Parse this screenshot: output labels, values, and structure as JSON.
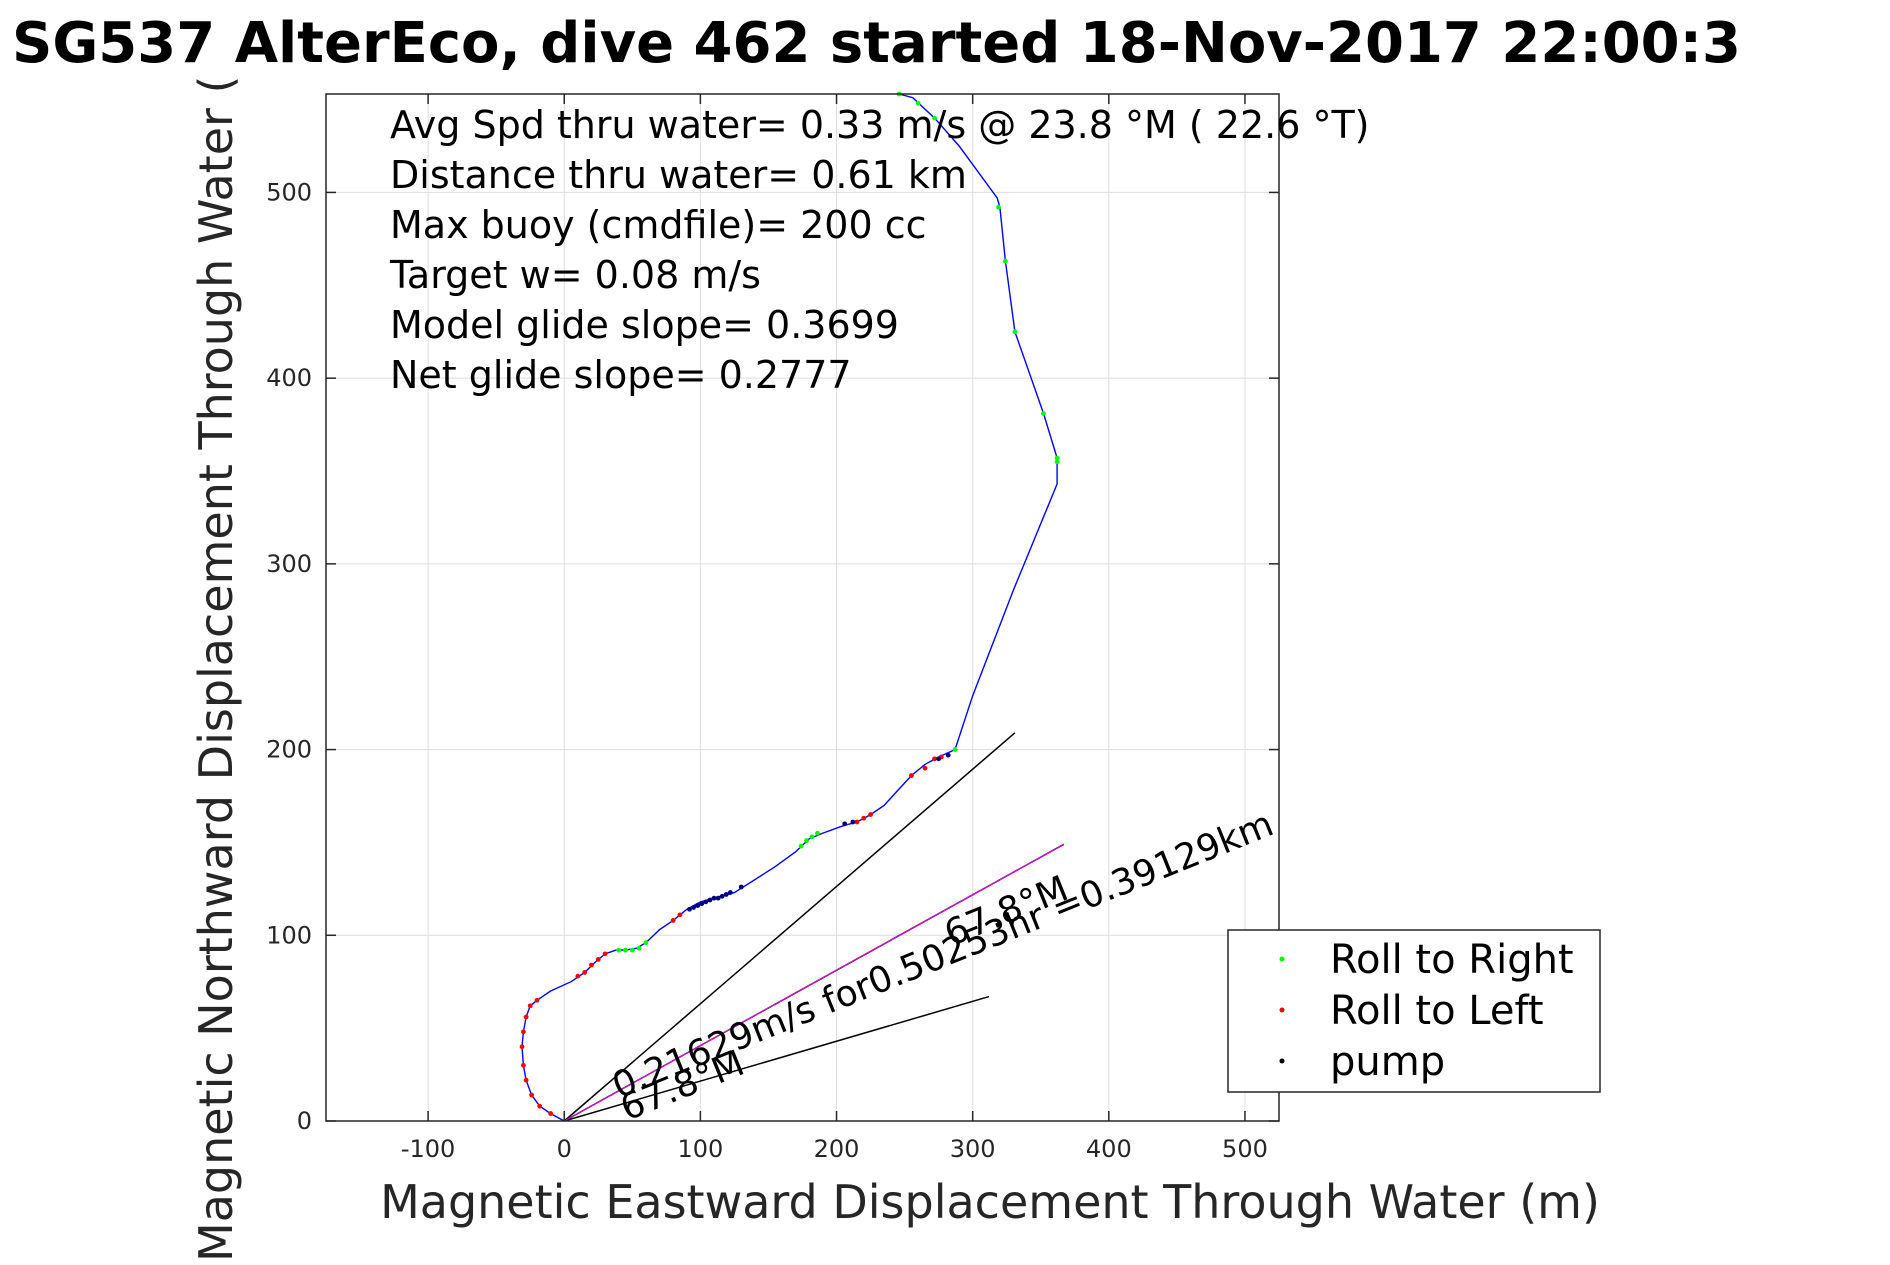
{
  "chart_data": {
    "type": "line",
    "title": "SG537 AlterEco, dive 462 started 18-Nov-2017 22:00:3",
    "xlabel": "Magnetic Eastward Displacement Through Water (m)",
    "ylabel": "Magnetic Northward Displacement Through Water (",
    "xlim": [
      -175,
      525
    ],
    "ylim": [
      0,
      553
    ],
    "xticks": [
      -100,
      0,
      100,
      200,
      300,
      400,
      500
    ],
    "yticks": [
      0,
      100,
      200,
      300,
      400,
      500
    ],
    "grid": true,
    "legend_position": "bottom-right",
    "colors": {
      "track": "#0000ff",
      "roll_right": "#00ff00",
      "roll_left": "#ff0000",
      "pump": "#000080",
      "current_line": "#ff00ff",
      "axes": "#262626",
      "grid": "#dedede"
    },
    "stats": [
      "Avg Spd thru water=  0.33 m/s @  23.8 °M ( 22.6 °T)",
      "Distance thru water=  0.61 km",
      "Max buoy (cmdfile)= 200 cc",
      "Target w= 0.08 m/s",
      "Model glide slope= 0.3699",
      "Net glide slope= 0.2777"
    ],
    "legend": [
      {
        "label": "Roll to Right",
        "color": "#00ff00"
      },
      {
        "label": "Roll to Left",
        "color": "#ff0000"
      },
      {
        "label": "pump",
        "color": "#000000"
      }
    ],
    "track": [
      [
        0,
        0
      ],
      [
        -10,
        4
      ],
      [
        -18,
        8
      ],
      [
        -24,
        14
      ],
      [
        -28,
        22
      ],
      [
        -30,
        30
      ],
      [
        -31,
        40
      ],
      [
        -30,
        48
      ],
      [
        -28,
        56
      ],
      [
        -25,
        62
      ],
      [
        -20,
        65
      ],
      [
        -10,
        70
      ],
      [
        5,
        75
      ],
      [
        15,
        80
      ],
      [
        22,
        85
      ],
      [
        30,
        90
      ],
      [
        38,
        92
      ],
      [
        45,
        92
      ],
      [
        53,
        93
      ],
      [
        60,
        96
      ],
      [
        70,
        103
      ],
      [
        80,
        108
      ],
      [
        90,
        114
      ],
      [
        100,
        118
      ],
      [
        110,
        120
      ],
      [
        125,
        123
      ],
      [
        140,
        130
      ],
      [
        155,
        137
      ],
      [
        170,
        145
      ],
      [
        180,
        152
      ],
      [
        190,
        155
      ],
      [
        205,
        159
      ],
      [
        215,
        161
      ],
      [
        225,
        165
      ],
      [
        235,
        170
      ],
      [
        245,
        178
      ],
      [
        255,
        186
      ],
      [
        265,
        192
      ],
      [
        275,
        196
      ],
      [
        287,
        200
      ],
      [
        300,
        229
      ],
      [
        330,
        286
      ],
      [
        362,
        343
      ],
      [
        362,
        357
      ],
      [
        352,
        381
      ],
      [
        331,
        425
      ],
      [
        324,
        463
      ],
      [
        320,
        492
      ],
      [
        318,
        497
      ],
      [
        290,
        525
      ],
      [
        272,
        540
      ],
      [
        256,
        551
      ],
      [
        246,
        553
      ]
    ],
    "roll_right_points": [
      [
        40,
        92
      ],
      [
        45,
        92
      ],
      [
        50,
        92
      ],
      [
        55,
        93
      ],
      [
        60,
        96
      ],
      [
        174,
        148
      ],
      [
        178,
        151
      ],
      [
        182,
        153
      ],
      [
        186,
        155
      ],
      [
        287,
        200
      ],
      [
        319,
        492
      ],
      [
        324,
        463
      ],
      [
        331,
        425
      ],
      [
        352,
        381
      ],
      [
        362,
        357
      ],
      [
        362,
        355
      ],
      [
        246,
        553
      ],
      [
        260,
        548
      ],
      [
        272,
        540
      ]
    ],
    "roll_left_points": [
      [
        -30,
        30
      ],
      [
        -31,
        40
      ],
      [
        -30,
        48
      ],
      [
        -28,
        56
      ],
      [
        -25,
        62
      ],
      [
        -20,
        65
      ],
      [
        -18,
        8
      ],
      [
        -24,
        14
      ],
      [
        -28,
        22
      ],
      [
        -10,
        4
      ],
      [
        10,
        78
      ],
      [
        15,
        80
      ],
      [
        20,
        84
      ],
      [
        25,
        87
      ],
      [
        30,
        90
      ],
      [
        80,
        108
      ],
      [
        85,
        111
      ],
      [
        215,
        161
      ],
      [
        220,
        163
      ],
      [
        225,
        165
      ],
      [
        255,
        186
      ],
      [
        265,
        190
      ],
      [
        272,
        195
      ],
      [
        277,
        196
      ]
    ],
    "pump_points": [
      [
        92,
        114
      ],
      [
        95,
        115
      ],
      [
        98,
        116
      ],
      [
        101,
        117
      ],
      [
        104,
        118
      ],
      [
        107,
        119
      ],
      [
        110,
        120
      ],
      [
        113,
        120
      ],
      [
        116,
        121
      ],
      [
        119,
        122
      ],
      [
        122,
        123
      ],
      [
        130,
        126
      ],
      [
        206,
        160
      ],
      [
        212,
        161
      ],
      [
        275,
        195
      ],
      [
        282,
        197
      ]
    ],
    "current_vector": {
      "from": [
        0,
        0
      ],
      "to": [
        367,
        149
      ]
    },
    "wedge_lines": [
      {
        "from": [
          0,
          0
        ],
        "to": [
          331,
          209
        ]
      },
      {
        "from": [
          0,
          0
        ],
        "to": [
          312,
          67
        ]
      }
    ],
    "annotations": [
      {
        "text": "0.21629m/s for0.50253hr =0.39129km",
        "at": [
          40,
          12
        ],
        "angle_deg": -22
      },
      {
        "text": "67.8°M",
        "at": [
          46,
          0
        ],
        "angle_deg": -22
      },
      {
        "text": "67.8°M",
        "at": [
          284,
          94
        ],
        "angle_deg": -22
      }
    ]
  }
}
